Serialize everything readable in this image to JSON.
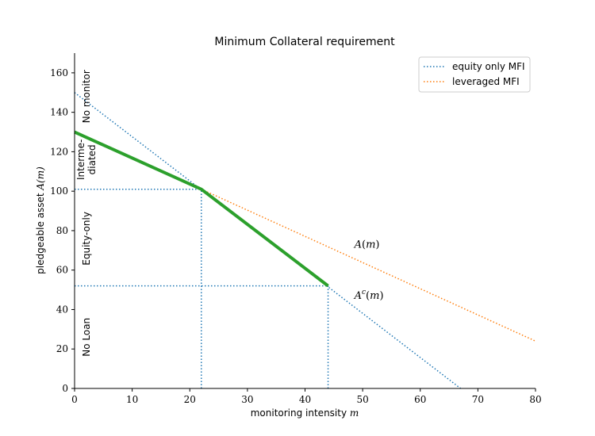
{
  "chart_data": {
    "type": "line",
    "title": "Minimum Collateral requirement",
    "xlabel": "monitoring intensity $m$",
    "ylabel": "pledgeable asset $A(m)$",
    "xlim": [
      0,
      80
    ],
    "ylim": [
      0,
      170
    ],
    "xticks": [
      0,
      10,
      20,
      30,
      40,
      50,
      60,
      70,
      80
    ],
    "yticks": [
      0,
      20,
      40,
      60,
      80,
      100,
      120,
      140,
      160
    ],
    "grid": false,
    "legend_position": "top-right",
    "colors": {
      "equity_only": "#1f77b4",
      "leveraged": "#ff7f0e",
      "requirement": "#2ca02c",
      "axis": "#000000"
    },
    "series": [
      {
        "name": "equity only MFI",
        "style": "dotted",
        "color": "#1f77b4",
        "points": [
          [
            0,
            150
          ],
          [
            67,
            0
          ]
        ]
      },
      {
        "name": "leveraged MFI",
        "style": "dotted",
        "color": "#ff7f0e",
        "points": [
          [
            22,
            101
          ],
          [
            80,
            24
          ]
        ]
      },
      {
        "style": "solid",
        "color": "#2ca02c",
        "points": [
          [
            0,
            130
          ],
          [
            22,
            101
          ],
          [
            44,
            52
          ]
        ]
      }
    ],
    "reference_lines": [
      {
        "points": [
          [
            0,
            101
          ],
          [
            22,
            101
          ]
        ]
      },
      {
        "points": [
          [
            22,
            0
          ],
          [
            22,
            101
          ]
        ]
      },
      {
        "points": [
          [
            0,
            52
          ],
          [
            44,
            52
          ]
        ]
      },
      {
        "points": [
          [
            44,
            0
          ],
          [
            44,
            52
          ]
        ]
      }
    ],
    "annotations": [
      {
        "label": "A",
        "arg": "(m)",
        "sup": "",
        "x": 48,
        "y": 73
      },
      {
        "label": "A",
        "arg": "(m)",
        "sup": "c",
        "x": 48,
        "y": 47
      }
    ],
    "region_labels": [
      {
        "text": "No monitor",
        "y": 148
      },
      {
        "text": "Interme-",
        "text2": "diated",
        "y": 116
      },
      {
        "text": "Equity-only",
        "y": 76
      },
      {
        "text": "No Loan",
        "y": 26
      }
    ]
  }
}
